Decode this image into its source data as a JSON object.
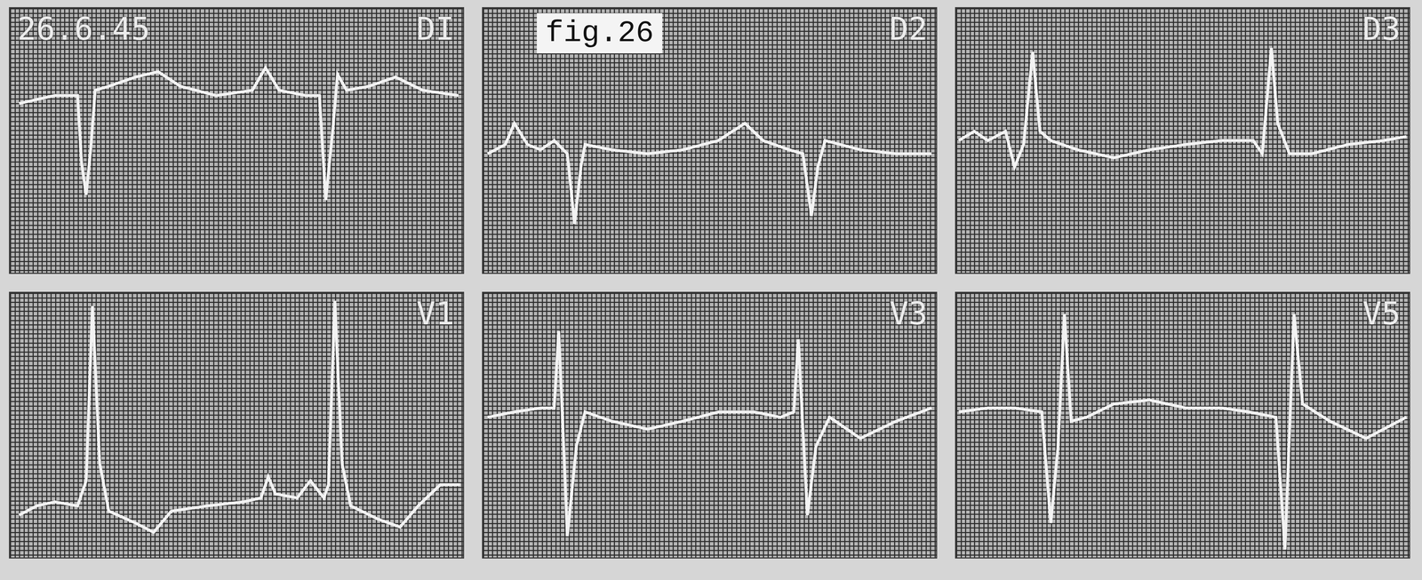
{
  "date_label": "26.6.45",
  "figure_label": "fig.26",
  "chart_data": [
    {
      "type": "line",
      "title": "DI",
      "color": "#f2f2f2",
      "grid": true,
      "tick_labels": false,
      "xlim": [
        0,
        100
      ],
      "ylim": [
        -10,
        10
      ],
      "x": [
        2,
        5.9,
        9.9,
        14.9,
        15.8,
        16.8,
        17.8,
        18.8,
        21.8,
        27.7,
        32.7,
        37.6,
        45.5,
        53.5,
        56.4,
        59.4,
        65.3,
        68.3,
        69.7,
        71.3,
        72.3,
        74.3,
        79.2,
        85.1,
        91.1,
        99
      ],
      "values": [
        2.8,
        3.1,
        3.4,
        3.4,
        -1.7,
        -4.1,
        -0.7,
        3.8,
        4.1,
        4.8,
        5.2,
        4.1,
        3.4,
        3.8,
        5.5,
        3.8,
        3.4,
        3.4,
        -4.5,
        1.0,
        5.0,
        3.8,
        4.1,
        4.8,
        3.8,
        3.4
      ]
    },
    {
      "type": "line",
      "title": "D2",
      "color": "#f2f2f2",
      "grid": true,
      "tick_labels": false,
      "xlim": [
        0,
        100
      ],
      "ylim": [
        -10,
        10
      ],
      "x": [
        1,
        4.9,
        6.9,
        9.8,
        12.7,
        15.7,
        18.6,
        20.2,
        21.6,
        22.5,
        28.4,
        36.3,
        44.1,
        51.9,
        57.8,
        61.8,
        67.6,
        70.6,
        72.5,
        73.9,
        75.5,
        83.3,
        91.2,
        99
      ],
      "values": [
        -1,
        -0.3,
        1.3,
        -0.3,
        -0.7,
        0,
        -1,
        -6.3,
        -2,
        -0.3,
        -0.7,
        -1,
        -0.7,
        0,
        1.3,
        0,
        -0.7,
        -1,
        -5.7,
        -2,
        0,
        -0.7,
        -1,
        -1
      ]
    },
    {
      "type": "line",
      "title": "D3",
      "color": "#f2f2f2",
      "grid": true,
      "tick_labels": false,
      "xlim": [
        0,
        100
      ],
      "ylim": [
        -10,
        10
      ],
      "x": [
        0.6,
        4,
        7,
        10.9,
        12.9,
        14.9,
        16.9,
        18.5,
        20.9,
        26.8,
        34.8,
        42.7,
        50.7,
        58.6,
        65.6,
        67.6,
        69.6,
        71,
        73.6,
        78.5,
        86.5,
        94.4,
        99.4
      ],
      "values": [
        0,
        0.7,
        0,
        0.7,
        -2,
        -0.3,
        6.7,
        0.7,
        0,
        -0.7,
        -1.3,
        -0.7,
        -0.3,
        0,
        0,
        -1,
        7,
        1.3,
        -1,
        -1,
        -0.3,
        0,
        0.3
      ]
    },
    {
      "type": "line",
      "title": "V1",
      "color": "#f2f2f2",
      "grid": true,
      "tick_labels": false,
      "xlim": [
        0,
        100
      ],
      "ylim": [
        -10,
        10
      ],
      "x": [
        2,
        5.9,
        9.9,
        14.9,
        16.8,
        18.2,
        19.8,
        21.8,
        27.7,
        31.7,
        35.6,
        43.6,
        51.5,
        55.4,
        57,
        58.6,
        63.4,
        66.3,
        69.3,
        70.3,
        71.7,
        73.3,
        75.2,
        81.2,
        86.1,
        90.1,
        95,
        99.4
      ],
      "values": [
        -6.8,
        -6.1,
        -5.8,
        -6.1,
        -4.2,
        9,
        -2.9,
        -6.5,
        -7.4,
        -8.1,
        -6.5,
        -6.1,
        -5.8,
        -5.5,
        -3.9,
        -5.2,
        -5.5,
        -4.2,
        -5.5,
        -4.5,
        9.4,
        -2.9,
        -6.1,
        -7.1,
        -7.7,
        -6.1,
        -4.5,
        -4.5
      ]
    },
    {
      "type": "line",
      "title": "V3",
      "color": "#f2f2f2",
      "grid": true,
      "tick_labels": false,
      "xlim": [
        0,
        100
      ],
      "ylim": [
        -10,
        10
      ],
      "x": [
        1,
        6.9,
        12.7,
        15.7,
        16.7,
        17.8,
        18.6,
        20.6,
        22.5,
        28.4,
        36.3,
        44.1,
        52,
        59.8,
        65.7,
        68.6,
        69.6,
        70.6,
        71.6,
        73.5,
        76.5,
        83.3,
        91.2,
        99
      ],
      "values": [
        0.6,
        1,
        1.3,
        1.3,
        7.1,
        -1.6,
        -8.4,
        -1.6,
        1,
        0.3,
        -0.3,
        0.3,
        1,
        1,
        0.6,
        1,
        6.5,
        -0.3,
        -6.8,
        -1.6,
        0.6,
        -1,
        0.3,
        1.3
      ]
    },
    {
      "type": "line",
      "title": "V5",
      "color": "#f2f2f2",
      "grid": true,
      "tick_labels": false,
      "xlim": [
        0,
        100
      ],
      "ylim": [
        -10,
        10
      ],
      "x": [
        0.6,
        7,
        12.9,
        18.9,
        20.9,
        22.5,
        23.9,
        25.4,
        28.8,
        34.8,
        42.7,
        50.7,
        58.6,
        64.6,
        70.6,
        72.6,
        74.6,
        76.5,
        82.5,
        90.5,
        99.4
      ],
      "values": [
        1,
        1.3,
        1.3,
        1,
        -7.4,
        -1.6,
        8.4,
        0.3,
        0.6,
        1.6,
        1.9,
        1.3,
        1.3,
        1,
        0.6,
        -9.4,
        8.4,
        1.6,
        0.3,
        -1,
        0.6
      ]
    }
  ]
}
